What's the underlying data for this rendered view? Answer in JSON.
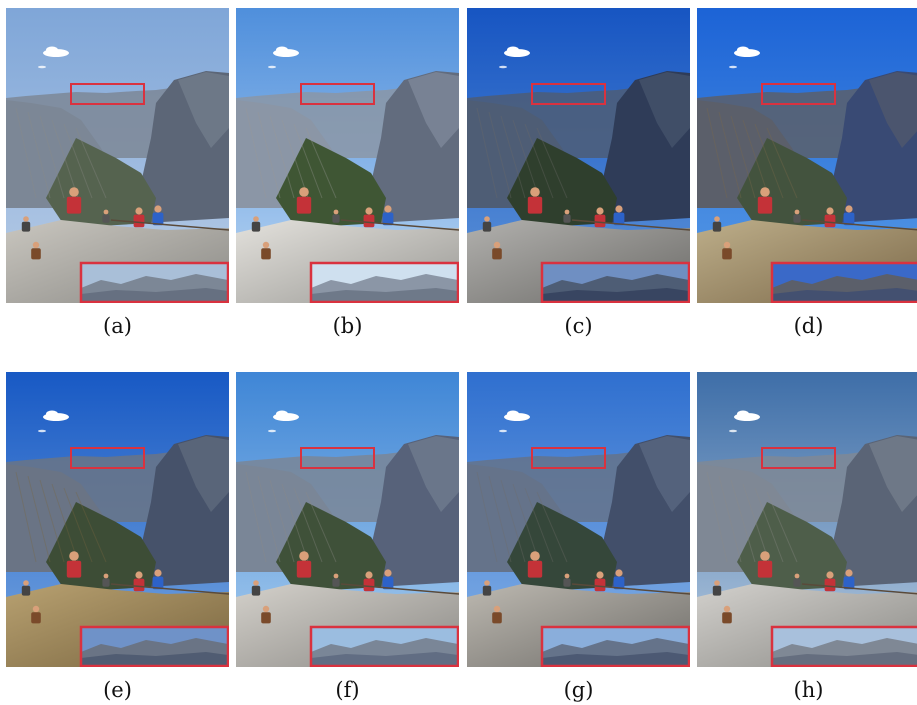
{
  "panels": [
    {
      "label": "(a)",
      "sky_top": "#7fa6d8",
      "sky_bottom": "#b9cde6",
      "mountain": "#7c8796",
      "dome": "#5c6677",
      "forest": "#55634f",
      "rock": "#c9c6bf",
      "inset": "#a9bfd8",
      "rock_dark": "#8b8a86"
    },
    {
      "label": "(b)",
      "sky_top": "#4f8fdc",
      "sky_bottom": "#bad6f2",
      "mountain": "#8b96a6",
      "dome": "#626c7e",
      "forest": "#3f5634",
      "rock": "#e3e1dc",
      "inset": "#cfe0ef",
      "rock_dark": "#9a9995"
    },
    {
      "label": "(c)",
      "sky_top": "#1755c2",
      "sky_bottom": "#5f95d9",
      "mountain": "#4e5d75",
      "dome": "#2f3c58",
      "forest": "#2f3f2d",
      "rock": "#b1b0ad",
      "inset": "#6f8fc2",
      "rock_dark": "#6c6b68"
    },
    {
      "label": "(d)",
      "sky_top": "#1c63d6",
      "sky_bottom": "#5a9de6",
      "mountain": "#5b5f6a",
      "dome": "#394a74",
      "forest": "#43533e",
      "rock": "#bdae8a",
      "inset": "#3a69c8",
      "rock_dark": "#7d6a4a"
    },
    {
      "label": "(e)",
      "sky_top": "#1859c4",
      "sky_bottom": "#76a6e0",
      "mountain": "#6a7485",
      "dome": "#46526a",
      "forest": "#3d4d36",
      "rock": "#b8a171",
      "inset": "#6f92c8",
      "rock_dark": "#7a6640"
    },
    {
      "label": "(f)",
      "sky_top": "#3f86d6",
      "sky_bottom": "#a9cdee",
      "mountain": "#7a8697",
      "dome": "#57627a",
      "forest": "#3f5139",
      "rock": "#d3d0ca",
      "inset": "#9bbde0",
      "rock_dark": "#8c8a86"
    },
    {
      "label": "(g)",
      "sky_top": "#2f6fcf",
      "sky_bottom": "#86b2e6",
      "mountain": "#65738a",
      "dome": "#424f6a",
      "forest": "#35473a",
      "rock": "#bcb8b0",
      "inset": "#8aaedb",
      "rock_dark": "#6f6d69"
    },
    {
      "label": "(h)",
      "sky_top": "#3e6ea8",
      "sky_bottom": "#b5cadf",
      "mountain": "#7f8895",
      "dome": "#5a6476",
      "forest": "#4e5e4a",
      "rock": "#d2d0cc",
      "inset": "#a8c0dc",
      "rock_dark": "#8c8b87"
    }
  ],
  "highlight_color": "#d9323f"
}
